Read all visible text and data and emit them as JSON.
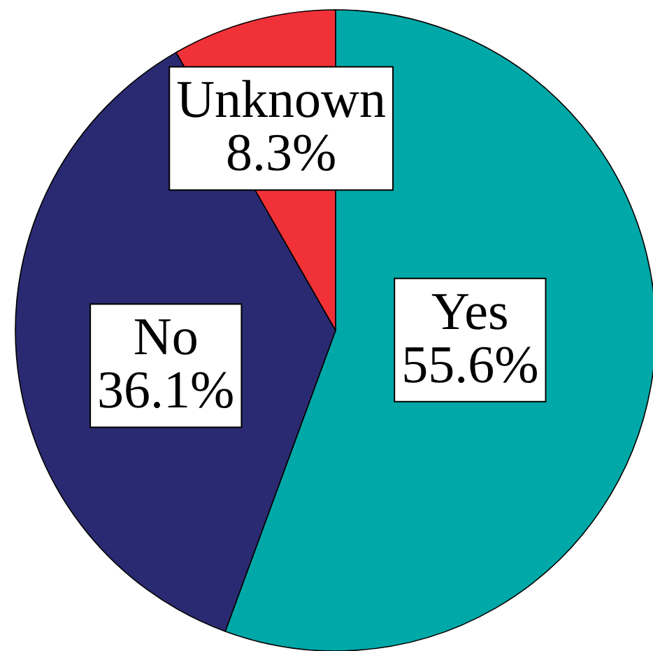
{
  "chart_data": {
    "type": "pie",
    "categories": [
      "Yes",
      "No",
      "Unknown"
    ],
    "values": [
      55.6,
      36.1,
      8.3
    ],
    "colors": [
      "#00a8a8",
      "#2a2a72",
      "#f03238"
    ],
    "value_labels": [
      "55.6%",
      "36.1%",
      "8.3%"
    ]
  }
}
